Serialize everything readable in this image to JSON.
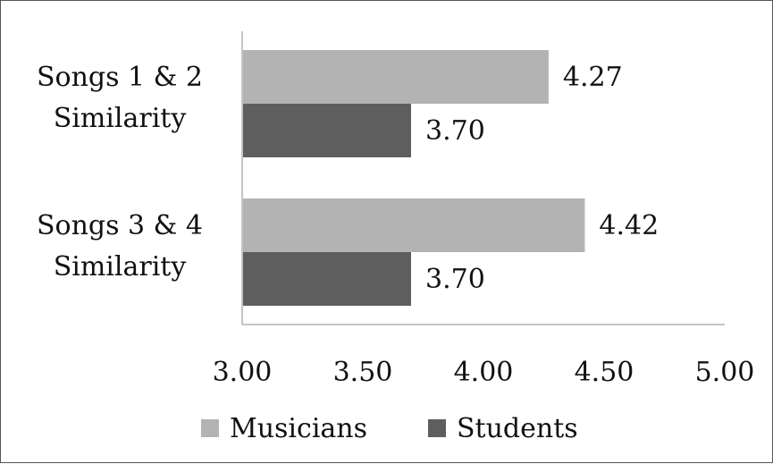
{
  "chart_data": {
    "type": "bar",
    "orientation": "horizontal",
    "categories": [
      [
        "Songs 1 & 2",
        "Similarity"
      ],
      [
        "Songs 3 & 4",
        "Similarity"
      ]
    ],
    "series": [
      {
        "name": "Musicians",
        "color": "#b3b3b3",
        "values": [
          4.27,
          4.42
        ],
        "labels": [
          "4.27",
          "4.42"
        ]
      },
      {
        "name": "Students",
        "color": "#5e5e5e",
        "values": [
          3.7,
          3.7
        ],
        "labels": [
          "3.70",
          "3.70"
        ]
      }
    ],
    "xlim": [
      3.0,
      5.0
    ],
    "ticks": [
      3.0,
      3.5,
      4.0,
      4.5,
      5.0
    ],
    "tick_labels": [
      "3.00",
      "3.50",
      "4.00",
      "4.50",
      "5.00"
    ],
    "grid": false,
    "legend_position": "bottom"
  }
}
